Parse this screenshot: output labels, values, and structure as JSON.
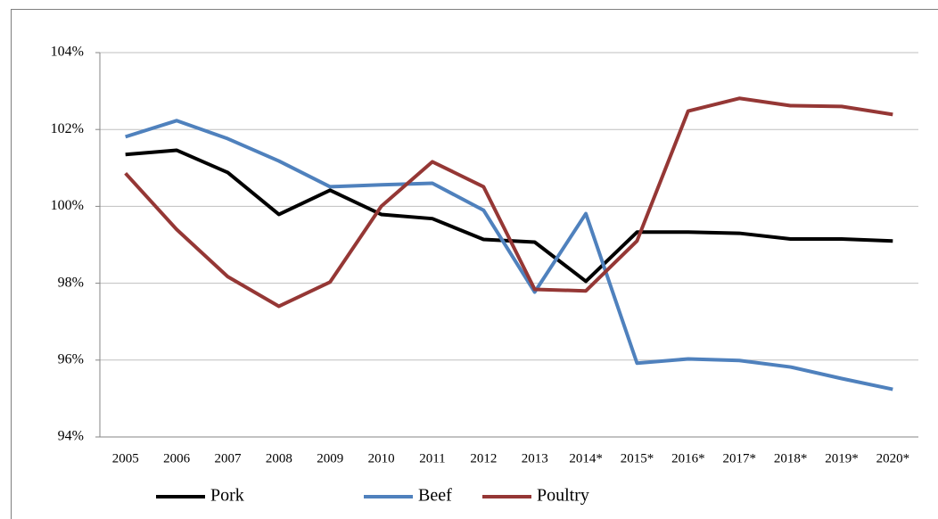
{
  "chart_data": {
    "type": "line",
    "categories": [
      "2005",
      "2006",
      "2007",
      "2008",
      "2009",
      "2010",
      "2011",
      "2012",
      "2013",
      "2014*",
      "2015*",
      "2016*",
      "2017*",
      "2018*",
      "2019*",
      "2020*"
    ],
    "series": [
      {
        "name": "Pork",
        "color": "#000000",
        "values": [
          101.35,
          101.46,
          100.88,
          99.79,
          100.42,
          99.79,
          99.68,
          99.14,
          99.07,
          98.05,
          99.33,
          99.33,
          99.3,
          99.15,
          99.15,
          99.1
        ]
      },
      {
        "name": "Beef",
        "color": "#4f81bd",
        "values": [
          101.81,
          102.23,
          101.76,
          101.18,
          100.51,
          100.56,
          100.6,
          99.9,
          97.77,
          99.81,
          95.92,
          96.03,
          95.99,
          95.82,
          95.52,
          95.24
        ]
      },
      {
        "name": "Poultry",
        "color": "#953735",
        "values": [
          100.86,
          99.4,
          98.17,
          97.4,
          98.03,
          100.0,
          101.16,
          100.51,
          97.84,
          97.8,
          99.1,
          102.48,
          102.81,
          102.62,
          102.6,
          102.39
        ]
      }
    ],
    "ylim": [
      94,
      104
    ],
    "yticks": [
      {
        "value": 94,
        "label": "94%"
      },
      {
        "value": 96,
        "label": "96%"
      },
      {
        "value": 98,
        "label": "98%"
      },
      {
        "value": 100,
        "label": "100%"
      },
      {
        "value": 102,
        "label": "102%"
      },
      {
        "value": 104,
        "label": "104%"
      }
    ],
    "grid": true,
    "legend": "bottom"
  }
}
